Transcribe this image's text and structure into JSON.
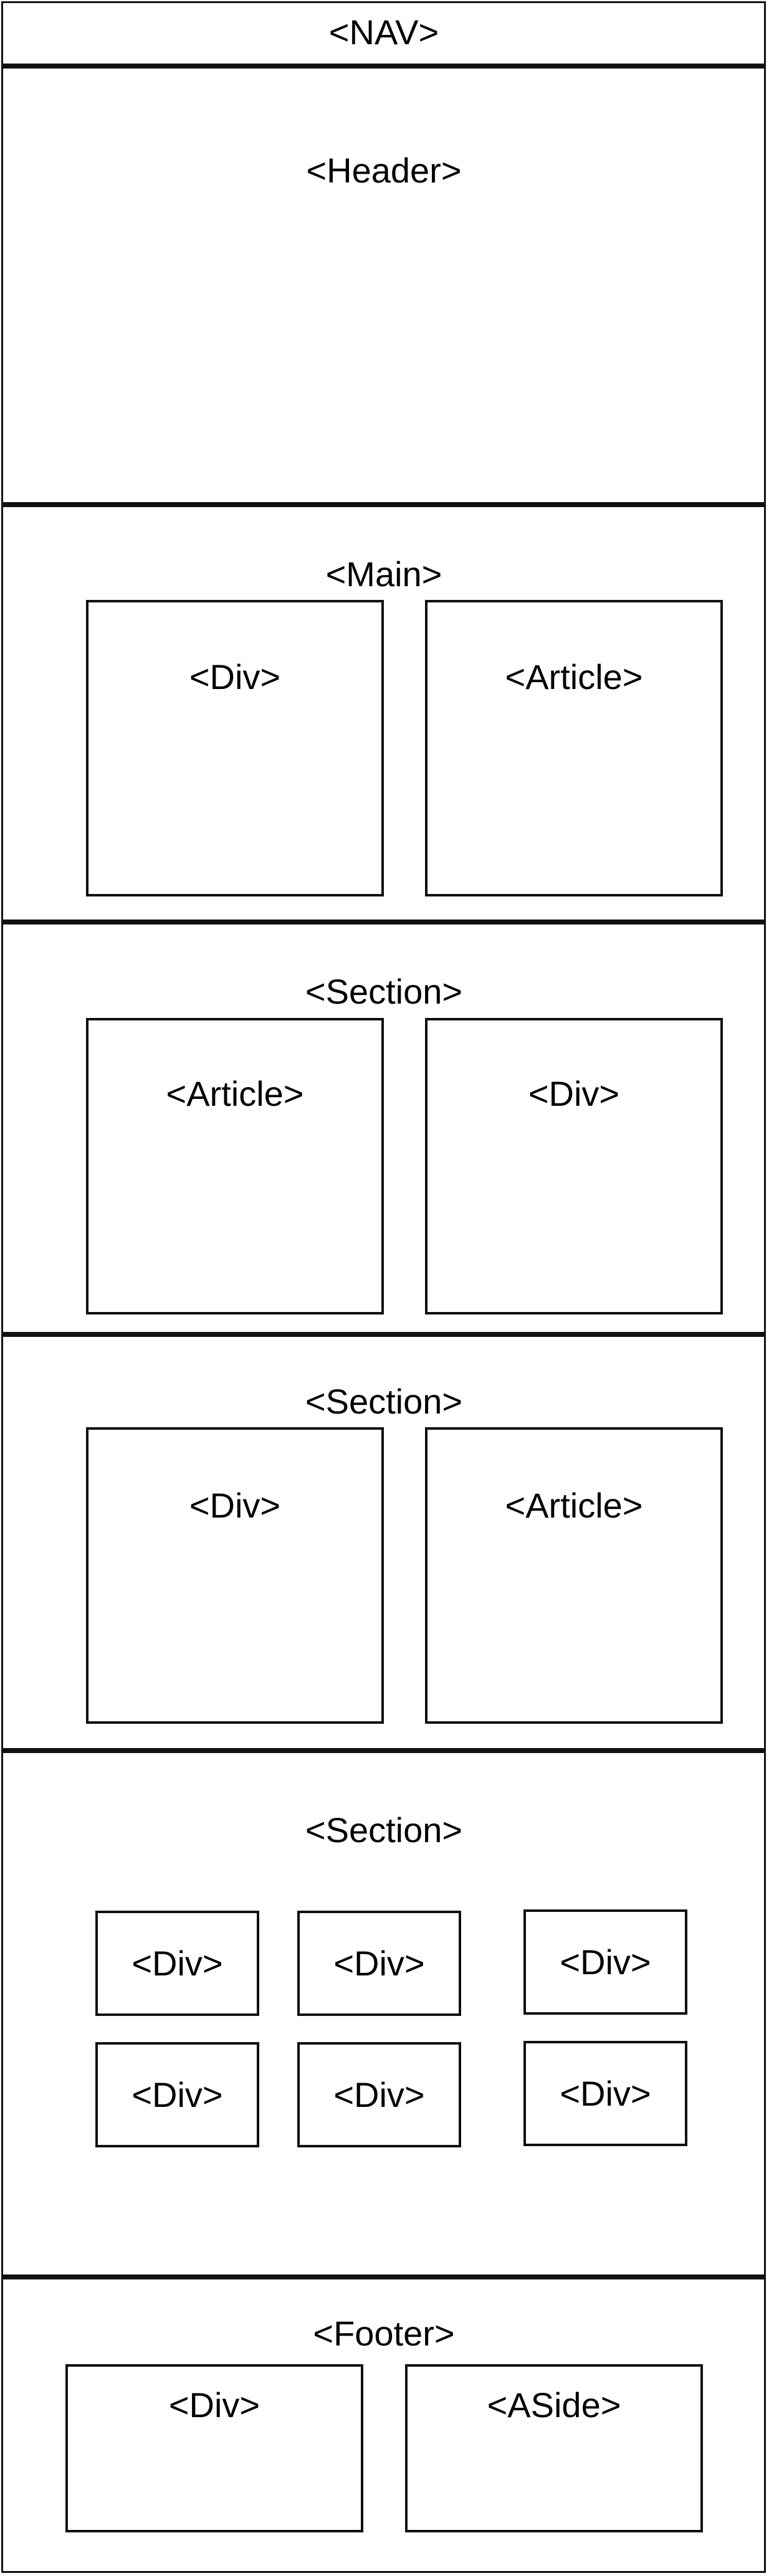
{
  "nav": {
    "label": "<NAV>"
  },
  "header": {
    "label": "<Header>"
  },
  "main": {
    "label": "<Main>",
    "boxes": [
      "<Div>",
      "<Article>"
    ]
  },
  "section1": {
    "label": "<Section>",
    "boxes": [
      "<Article>",
      "<Div>"
    ]
  },
  "section2": {
    "label": "<Section>",
    "boxes": [
      "<Div>",
      "<Article>"
    ]
  },
  "section3": {
    "label": "<Section>",
    "boxes": [
      "<Div>",
      "<Div>",
      "<Div>",
      "<Div>",
      "<Div>",
      "<Div>"
    ]
  },
  "footer": {
    "label": "<Footer>",
    "boxes": [
      "<Div>",
      "<ASide>"
    ]
  }
}
